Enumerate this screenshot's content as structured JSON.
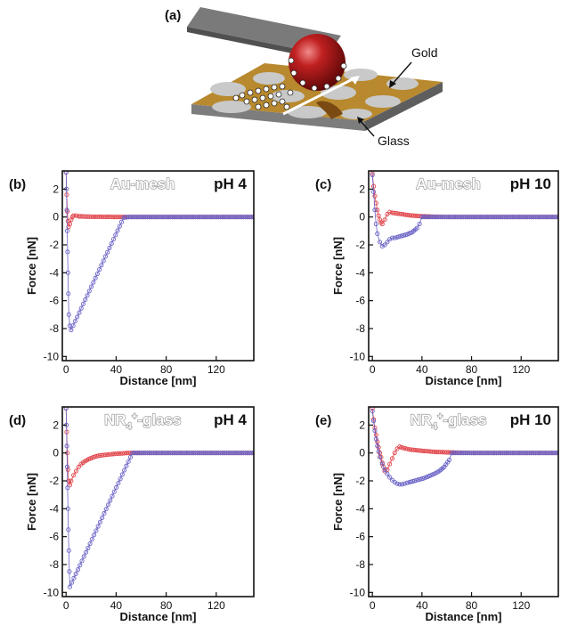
{
  "panel_a": {
    "label": "(a)",
    "gold_label": "Gold",
    "glass_label": "Glass"
  },
  "colors": {
    "approach": "#e0434a",
    "retract": "#6a63c6",
    "frame": "#111111",
    "gold": "#b8892e",
    "glass": "#c9c9c9",
    "sphere": "#b01818"
  },
  "chart_data": [
    {
      "panel": "(b)",
      "type": "scatter",
      "surface": "Au-mesh",
      "ph": "pH 4",
      "xlabel": "Distance [nm]",
      "ylabel": "Force [nN]",
      "xlim": [
        -3,
        150
      ],
      "ylim": [
        -10.3,
        3.3
      ],
      "xticks": [
        0,
        40,
        80,
        120
      ],
      "yticks": [
        2,
        0,
        -2,
        -4,
        -6,
        -8,
        -10
      ],
      "series": [
        {
          "x": [
            0,
            0.5,
            1,
            1.5,
            2,
            3,
            4,
            5,
            6,
            8,
            10,
            14,
            20,
            30,
            40,
            50,
            60,
            70,
            80,
            90,
            100,
            110,
            120,
            130,
            140,
            150
          ],
          "y": [
            3.2,
            1.6,
            0.4,
            -0.3,
            -0.7,
            -0.5,
            -0.2,
            0.0,
            0.1,
            0.1,
            0.05,
            0.03,
            0.02,
            0.01,
            0.0,
            0.0,
            0.0,
            0.0,
            0.0,
            0.0,
            0.0,
            0.0,
            0.0,
            0.0,
            0.0,
            0.0
          ]
        },
        {
          "x": [
            0,
            0.3,
            0.6,
            0.9,
            1.2,
            1.5,
            1.8,
            2.2,
            3,
            4,
            46,
            50,
            55,
            60,
            70,
            80,
            90,
            100,
            110,
            120,
            130,
            140,
            150
          ],
          "y": [
            3.2,
            2,
            0.5,
            -1,
            -2.5,
            -4,
            -5.5,
            -7,
            -7.8,
            -8.1,
            -0.05,
            0.0,
            0.0,
            0.0,
            0.0,
            0.0,
            0.0,
            0.0,
            0.0,
            0.0,
            0.0,
            0.0,
            0.0
          ]
        }
      ]
    },
    {
      "panel": "(c)",
      "type": "scatter",
      "surface": "Au-mesh",
      "ph": "pH 10",
      "xlabel": "Distance [nm]",
      "ylabel": "Force [nN]",
      "xlim": [
        -3,
        150
      ],
      "ylim": [
        -10.3,
        3.3
      ],
      "xticks": [
        0,
        40,
        80,
        120
      ],
      "yticks": [
        2,
        0,
        -2,
        -4,
        -6,
        -8,
        -10
      ],
      "series": [
        {
          "x": [
            0,
            1,
            2,
            3,
            4,
            5,
            6,
            7,
            8,
            10,
            12,
            14,
            16,
            20,
            25,
            30,
            35,
            40,
            50,
            60,
            70,
            80,
            90,
            100,
            110,
            120,
            130,
            140,
            150
          ],
          "y": [
            3.1,
            2.2,
            1.5,
            1.0,
            0.5,
            0.1,
            -0.2,
            -0.4,
            -0.5,
            -0.2,
            0.2,
            0.35,
            0.3,
            0.25,
            0.18,
            0.12,
            0.08,
            0.05,
            0.02,
            0.0,
            0.0,
            0.0,
            0.0,
            0.0,
            0.0,
            0.0,
            0.0,
            0.0,
            0.0
          ]
        },
        {
          "x": [
            0,
            1,
            2,
            3,
            4,
            6,
            8,
            10,
            12,
            14,
            16,
            18,
            20,
            24,
            28,
            32,
            36,
            38,
            40,
            45,
            50,
            60,
            70,
            80,
            90,
            100,
            110,
            120,
            130,
            140,
            150
          ],
          "y": [
            3.0,
            1.8,
            0.5,
            -0.5,
            -1.2,
            -1.8,
            -2.1,
            -2.0,
            -1.8,
            -1.6,
            -1.5,
            -1.5,
            -1.45,
            -1.35,
            -1.25,
            -1.1,
            -0.8,
            -0.5,
            0.0,
            0.0,
            0.0,
            0.0,
            0.0,
            0.0,
            0.0,
            0.0,
            0.0,
            0.0,
            0.0,
            0.0,
            0.0
          ]
        }
      ]
    },
    {
      "panel": "(d)",
      "type": "scatter",
      "surface": "NR4+-glass",
      "ph": "pH 4",
      "xlabel": "Distance [nm]",
      "ylabel": "Force [nN]",
      "xlim": [
        -3,
        150
      ],
      "ylim": [
        -10.3,
        3.3
      ],
      "xticks": [
        0,
        40,
        80,
        120
      ],
      "yticks": [
        2,
        0,
        -2,
        -4,
        -6,
        -8,
        -10
      ],
      "series": [
        {
          "x": [
            0,
            0.5,
            1,
            1.5,
            2,
            3,
            4,
            6,
            8,
            10,
            12,
            15,
            18,
            22,
            26,
            30,
            35,
            40,
            45,
            50,
            60,
            70,
            80,
            90,
            100,
            110,
            120,
            130,
            140,
            150
          ],
          "y": [
            3.2,
            1.5,
            0.0,
            -1.2,
            -2.0,
            -2.3,
            -2.0,
            -1.6,
            -1.3,
            -1.0,
            -0.8,
            -0.6,
            -0.45,
            -0.3,
            -0.2,
            -0.15,
            -0.1,
            -0.06,
            -0.03,
            0.0,
            0.0,
            0.0,
            0.0,
            0.0,
            0.0,
            0.0,
            0.0,
            0.0,
            0.0,
            0.0
          ]
        },
        {
          "x": [
            0,
            0.3,
            0.6,
            0.9,
            1.2,
            1.5,
            1.8,
            2.2,
            2.6,
            3,
            53,
            56,
            60,
            70,
            80,
            90,
            100,
            110,
            120,
            130,
            140,
            150
          ],
          "y": [
            3.2,
            2,
            0.5,
            -1,
            -2.5,
            -4,
            -5.5,
            -7,
            -8.5,
            -9.6,
            0.0,
            0.0,
            0.0,
            0.0,
            0.0,
            0.0,
            0.0,
            0.0,
            0.0,
            0.0,
            0.0,
            0.0
          ]
        }
      ]
    },
    {
      "panel": "(e)",
      "type": "scatter",
      "surface": "NR4+-glass",
      "ph": "pH 10",
      "xlabel": "Distance [nm]",
      "ylabel": "Force [nN]",
      "xlim": [
        -3,
        150
      ],
      "ylim": [
        -10.3,
        3.3
      ],
      "xticks": [
        0,
        40,
        80,
        120
      ],
      "yticks": [
        2,
        0,
        -2,
        -4,
        -6,
        -8,
        -10
      ],
      "series": [
        {
          "x": [
            0,
            1,
            2,
            3,
            4,
            5,
            6,
            7,
            8,
            9,
            10,
            12,
            14,
            16,
            18,
            20,
            22,
            25,
            30,
            35,
            40,
            50,
            60,
            70,
            80,
            90,
            100,
            110,
            120,
            130,
            140,
            150
          ],
          "y": [
            3.2,
            2.4,
            1.8,
            1.3,
            0.8,
            0.4,
            0.0,
            -0.3,
            -0.7,
            -1.0,
            -1.3,
            -1.2,
            -0.8,
            -0.4,
            0.0,
            0.3,
            0.45,
            0.35,
            0.25,
            0.2,
            0.15,
            0.08,
            0.04,
            0.02,
            0.0,
            0.0,
            0.0,
            0.0,
            0.0,
            0.0,
            0.0,
            0.0
          ]
        },
        {
          "x": [
            0,
            1,
            2,
            3,
            4,
            5,
            6,
            8,
            10,
            12,
            14,
            16,
            18,
            20,
            22,
            24,
            26,
            28,
            30,
            34,
            38,
            42,
            46,
            50,
            54,
            58,
            62,
            64,
            70,
            80,
            90,
            100,
            110,
            120,
            130,
            140,
            150
          ],
          "y": [
            3.0,
            2.3,
            1.6,
            1.0,
            0.5,
            0.1,
            -0.3,
            -0.8,
            -1.2,
            -1.5,
            -1.75,
            -1.95,
            -2.1,
            -2.2,
            -2.25,
            -2.25,
            -2.2,
            -2.15,
            -2.1,
            -2.0,
            -1.9,
            -1.8,
            -1.65,
            -1.5,
            -1.3,
            -1.0,
            -0.5,
            0.0,
            0.0,
            0.0,
            0.0,
            0.0,
            0.0,
            0.0,
            0.0,
            0.0,
            0.0
          ]
        }
      ]
    }
  ]
}
